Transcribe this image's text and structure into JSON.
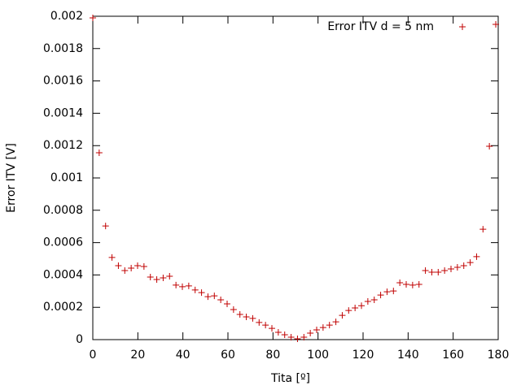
{
  "chart_data": {
    "type": "scatter",
    "xlabel": "Tita [º]",
    "ylabel": "Error ITV [V]",
    "xlim": [
      0,
      180
    ],
    "ylim": [
      0,
      0.002
    ],
    "xticks": [
      0,
      20,
      40,
      60,
      80,
      100,
      120,
      140,
      160,
      180
    ],
    "yticks": [
      0,
      0.0002,
      0.0004,
      0.0006,
      0.0008,
      0.001,
      0.0012,
      0.0014,
      0.0016,
      0.0018,
      0.002
    ],
    "legend": "top-right",
    "series": [
      {
        "name": "Error ITV d = 5 nm",
        "color": "#c00000",
        "x": [
          0,
          2.84,
          5.68,
          8.52,
          11.36,
          14.2,
          17.04,
          19.88,
          22.72,
          25.56,
          28.4,
          31.24,
          34.08,
          36.92,
          39.76,
          42.6,
          45.44,
          48.28,
          51.12,
          53.96,
          56.8,
          59.64,
          62.48,
          65.32,
          68.16,
          71,
          73.84,
          76.68,
          79.52,
          82.36,
          85.2,
          88.04,
          90.88,
          93.72,
          96.56,
          99.4,
          102.24,
          105.08,
          107.92,
          110.76,
          113.6,
          116.44,
          119.28,
          122.12,
          124.96,
          127.8,
          130.64,
          133.48,
          136.32,
          139.16,
          142,
          144.84,
          147.68,
          150.52,
          153.36,
          156.2,
          159.04,
          161.88,
          164.72,
          167.56,
          170.4,
          173.24,
          176.08,
          178.92
        ],
        "values": [
          0.00199,
          0.001156,
          0.000703,
          0.000508,
          0.000457,
          0.000427,
          0.000442,
          0.000457,
          0.000452,
          0.000387,
          0.000372,
          0.000382,
          0.000392,
          0.000337,
          0.000327,
          0.000332,
          0.000307,
          0.000291,
          0.000266,
          0.000271,
          0.000246,
          0.000221,
          0.000186,
          0.000156,
          0.000141,
          0.000131,
          0.000106,
          9e-05,
          7e-05,
          4.5e-05,
          3e-05,
          1.5e-05,
          5e-06,
          1.5e-05,
          4e-05,
          6e-05,
          7.5e-05,
          9e-05,
          0.00011,
          0.00015,
          0.00018,
          0.000196,
          0.00021,
          0.000236,
          0.000246,
          0.000276,
          0.000296,
          0.000301,
          0.000352,
          0.000342,
          0.000337,
          0.000342,
          0.000427,
          0.000417,
          0.000417,
          0.000427,
          0.000437,
          0.000447,
          0.000457,
          0.000477,
          0.000513,
          0.000683,
          0.001196,
          0.00195
        ]
      }
    ]
  }
}
